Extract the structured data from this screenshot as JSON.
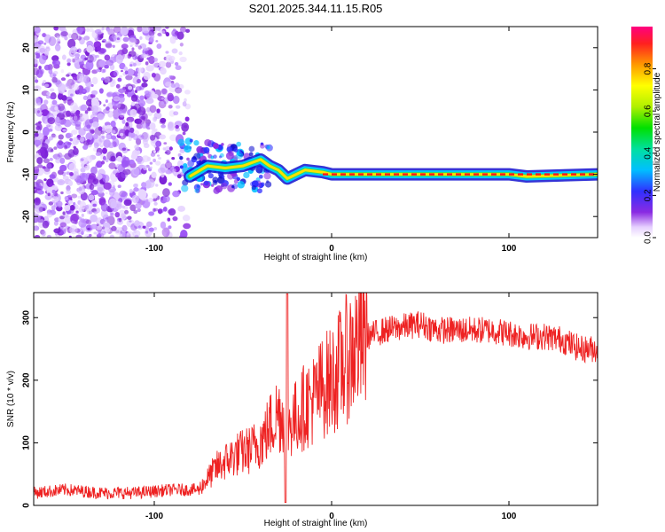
{
  "title": "S201.2025.344.11.15.R05",
  "chart_data": [
    {
      "type": "heatmap",
      "xlabel": "Height of straight line (km)",
      "ylabel": "Frequency (Hz)",
      "xlim": [
        -168,
        150
      ],
      "ylim": [
        -25,
        25
      ],
      "x_ticks": [
        -100,
        0,
        100
      ],
      "x_tick_labels": [
        "-100",
        "0",
        "100"
      ],
      "y_ticks": [
        20,
        10,
        0,
        -10,
        -20
      ],
      "y_tick_labels": [
        "20",
        "10",
        "0",
        "-10",
        "-20"
      ],
      "colorbar": {
        "label": "Normalized spectral amplitude",
        "range": [
          0,
          1
        ],
        "ticks": [
          0,
          0.2,
          0.4,
          0.6,
          0.8
        ],
        "tick_labels": [
          "0.0",
          "0.2",
          "0.4",
          "0.6",
          "0.8"
        ]
      },
      "dominant_frequency_track": {
        "description_points": [
          [
            -80,
            -10.5
          ],
          [
            -70,
            -8
          ],
          [
            -60,
            -8.5
          ],
          [
            -50,
            -8
          ],
          [
            -40,
            -6.5
          ],
          [
            -35,
            -8
          ],
          [
            -30,
            -9
          ],
          [
            -25,
            -11
          ],
          [
            -20,
            -10
          ],
          [
            -15,
            -9
          ],
          [
            -5,
            -9.5
          ],
          [
            0,
            -10
          ],
          [
            50,
            -10
          ],
          [
            100,
            -10
          ],
          [
            110,
            -10.5
          ],
          [
            150,
            -10
          ]
        ]
      }
    },
    {
      "type": "line",
      "xlabel": "Height of straight line (km)",
      "ylabel": "SNR (10 * v/v)",
      "xlim": [
        -168,
        150
      ],
      "ylim": [
        0,
        340
      ],
      "x_ticks": [
        -100,
        0,
        100
      ],
      "x_tick_labels": [
        "-100",
        "0",
        "100"
      ],
      "y_ticks": [
        0,
        100,
        200,
        300
      ],
      "y_tick_labels": [
        "0",
        "100",
        "200",
        "300"
      ],
      "color": "#ee2222",
      "series": [
        {
          "name": "SNR",
          "x": [
            -168,
            -150,
            -130,
            -110,
            -90,
            -75,
            -65,
            -55,
            -45,
            -38,
            -30,
            -25,
            -20,
            -15,
            -10,
            -5,
            0,
            5,
            10,
            15,
            20,
            30,
            40,
            50,
            60,
            70,
            80,
            90,
            100,
            110,
            120,
            130,
            140,
            150
          ],
          "values": [
            20,
            25,
            20,
            20,
            25,
            25,
            60,
            80,
            90,
            110,
            150,
            130,
            140,
            160,
            170,
            190,
            200,
            220,
            240,
            260,
            270,
            280,
            285,
            290,
            280,
            280,
            280,
            280,
            275,
            270,
            270,
            265,
            250,
            250
          ]
        }
      ]
    }
  ]
}
